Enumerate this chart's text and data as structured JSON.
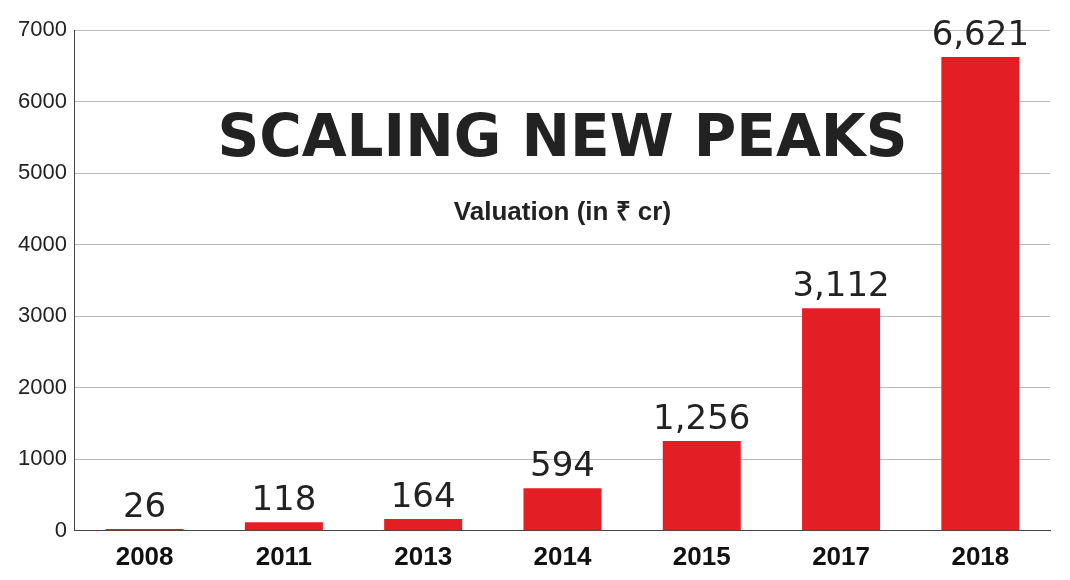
{
  "chart_data": {
    "type": "bar",
    "title": "SCALING NEW PEAKS",
    "subtitle": "Valuation (in ₹ cr)",
    "categories": [
      "2008",
      "2011",
      "2013",
      "2014",
      "2015",
      "2017",
      "2018"
    ],
    "values": [
      26,
      118,
      164,
      594,
      1256,
      3112,
      6621
    ],
    "value_labels": [
      "26",
      "118",
      "164",
      "594",
      "1,256",
      "3,112",
      "6,621"
    ],
    "color": "#e31e24",
    "ylim": [
      0,
      7000
    ],
    "yticks": [
      0,
      1000,
      2000,
      3000,
      4000,
      5000,
      6000,
      7000
    ],
    "grid": "y",
    "legend": false
  }
}
